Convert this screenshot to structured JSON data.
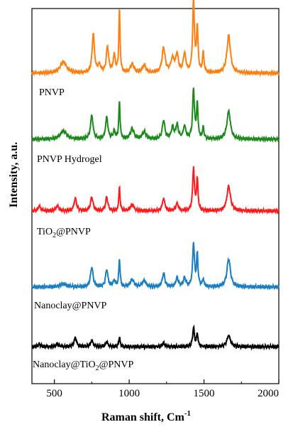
{
  "chart_data": {
    "type": "line",
    "xlabel": "Raman shift, Cm",
    "xlabel_superscript": "-1",
    "ylabel": "Intensity, a.u.",
    "xlim": [
      350,
      2000
    ],
    "y_tick_labels": "none",
    "x_ticks": [
      500,
      1000,
      1500,
      2000
    ],
    "x_tick_labels": [
      "500",
      "1000",
      "1500",
      "2000"
    ],
    "legend": "none",
    "series": [
      {
        "label": "PNVP",
        "color": "#ff7f0e",
        "baseline": 0.0,
        "peaks": [
          [
            560,
            0.18,
            25
          ],
          [
            760,
            0.62,
            9
          ],
          [
            800,
            0.12,
            12
          ],
          [
            855,
            0.42,
            9
          ],
          [
            900,
            0.28,
            8
          ],
          [
            935,
            1.0,
            5
          ],
          [
            1020,
            0.14,
            14
          ],
          [
            1100,
            0.12,
            14
          ],
          [
            1230,
            0.4,
            12
          ],
          [
            1290,
            0.22,
            14
          ],
          [
            1320,
            0.28,
            10
          ],
          [
            1370,
            0.3,
            10
          ],
          [
            1430,
            1.15,
            7
          ],
          [
            1455,
            0.72,
            6
          ],
          [
            1495,
            0.32,
            6
          ],
          [
            1665,
            0.6,
            14
          ]
        ]
      },
      {
        "label": "PNVP Hydrogel",
        "color": "#1a8a1a",
        "baseline": 0.0,
        "peaks": [
          [
            560,
            0.13,
            25
          ],
          [
            750,
            0.38,
            10
          ],
          [
            850,
            0.35,
            9
          ],
          [
            900,
            0.12,
            9
          ],
          [
            935,
            0.6,
            5
          ],
          [
            1020,
            0.16,
            14
          ],
          [
            1100,
            0.12,
            14
          ],
          [
            1230,
            0.3,
            10
          ],
          [
            1290,
            0.18,
            10
          ],
          [
            1320,
            0.22,
            10
          ],
          [
            1370,
            0.2,
            10
          ],
          [
            1430,
            0.8,
            7
          ],
          [
            1455,
            0.55,
            6
          ],
          [
            1495,
            0.18,
            6
          ],
          [
            1665,
            0.45,
            14
          ]
        ]
      },
      {
        "label": "TiO",
        "label_subscript": "2",
        "label_suffix": "@PNVP",
        "color": "#ff1a1a",
        "baseline": 0.0,
        "peaks": [
          [
            400,
            0.08,
            10
          ],
          [
            520,
            0.08,
            12
          ],
          [
            640,
            0.2,
            10
          ],
          [
            750,
            0.22,
            10
          ],
          [
            850,
            0.22,
            9
          ],
          [
            935,
            0.38,
            5
          ],
          [
            1020,
            0.1,
            14
          ],
          [
            1230,
            0.2,
            10
          ],
          [
            1320,
            0.12,
            10
          ],
          [
            1430,
            0.68,
            7
          ],
          [
            1455,
            0.5,
            6
          ],
          [
            1665,
            0.4,
            14
          ]
        ]
      },
      {
        "label": "Nanoclay@PNVP",
        "color": "#1a7ec0",
        "baseline": 0.0,
        "peaks": [
          [
            560,
            0.05,
            25
          ],
          [
            750,
            0.32,
            10
          ],
          [
            850,
            0.28,
            9
          ],
          [
            900,
            0.1,
            9
          ],
          [
            935,
            0.45,
            5
          ],
          [
            1020,
            0.12,
            14
          ],
          [
            1100,
            0.1,
            14
          ],
          [
            1230,
            0.22,
            10
          ],
          [
            1320,
            0.14,
            10
          ],
          [
            1370,
            0.14,
            10
          ],
          [
            1430,
            0.7,
            7
          ],
          [
            1455,
            0.5,
            6
          ],
          [
            1495,
            0.12,
            6
          ],
          [
            1665,
            0.45,
            14
          ]
        ]
      },
      {
        "label": "Nanoclay@TiO",
        "label_subscript": "2",
        "label_suffix": "@PNVP",
        "color": "#000000",
        "baseline": 0.0,
        "peaks": [
          [
            400,
            0.04,
            10
          ],
          [
            520,
            0.04,
            12
          ],
          [
            640,
            0.14,
            10
          ],
          [
            750,
            0.1,
            10
          ],
          [
            850,
            0.08,
            9
          ],
          [
            935,
            0.16,
            5
          ],
          [
            1230,
            0.06,
            10
          ],
          [
            1430,
            0.3,
            7
          ],
          [
            1455,
            0.2,
            6
          ],
          [
            1665,
            0.18,
            14
          ]
        ]
      }
    ]
  }
}
